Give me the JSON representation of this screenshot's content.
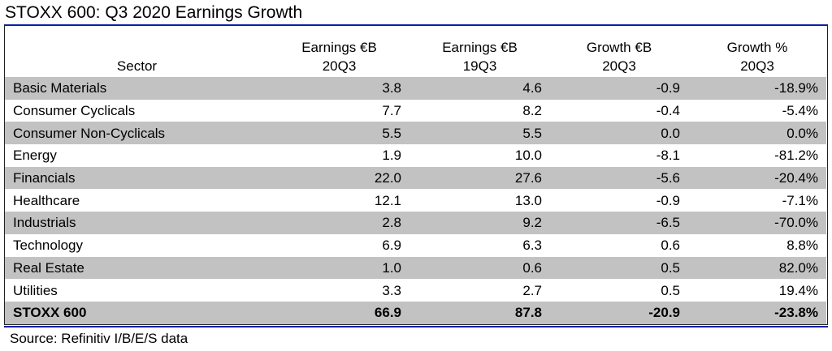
{
  "title": "STOXX 600: Q3 2020 Earnings Growth",
  "source": "Source: Refinitiv I/B/E/S data",
  "chart_data": {
    "type": "table",
    "title": "STOXX 600: Q3 2020 Earnings Growth",
    "columns": [
      {
        "line1": "Sector",
        "line2": ""
      },
      {
        "line1": "Earnings €B",
        "line2": "20Q3"
      },
      {
        "line1": "Earnings €B",
        "line2": "19Q3"
      },
      {
        "line1": "Growth €B",
        "line2": "20Q3"
      },
      {
        "line1": "Growth %",
        "line2": "20Q3"
      }
    ],
    "rows": [
      [
        "Basic Materials",
        "3.8",
        "4.6",
        "-0.9",
        "-18.9%"
      ],
      [
        "Consumer Cyclicals",
        "7.7",
        "8.2",
        "-0.4",
        "-5.4%"
      ],
      [
        "Consumer Non-Cyclicals",
        "5.5",
        "5.5",
        "0.0",
        "0.0%"
      ],
      [
        "Energy",
        "1.9",
        "10.0",
        "-8.1",
        "-81.2%"
      ],
      [
        "Financials",
        "22.0",
        "27.6",
        "-5.6",
        "-20.4%"
      ],
      [
        "Healthcare",
        "12.1",
        "13.0",
        "-0.9",
        "-7.1%"
      ],
      [
        "Industrials",
        "2.8",
        "9.2",
        "-6.5",
        "-70.0%"
      ],
      [
        "Technology",
        "6.9",
        "6.3",
        "0.6",
        "8.8%"
      ],
      [
        "Real Estate",
        "1.0",
        "0.6",
        "0.5",
        "82.0%"
      ],
      [
        "Utilities",
        "3.3",
        "2.7",
        "0.5",
        "19.4%"
      ]
    ],
    "total": [
      "STOXX 600",
      "66.9",
      "87.8",
      "-20.9",
      "-23.8%"
    ]
  },
  "colors": {
    "accent_rule": "#0a1fa0",
    "stripe": "#c2c2c2"
  }
}
